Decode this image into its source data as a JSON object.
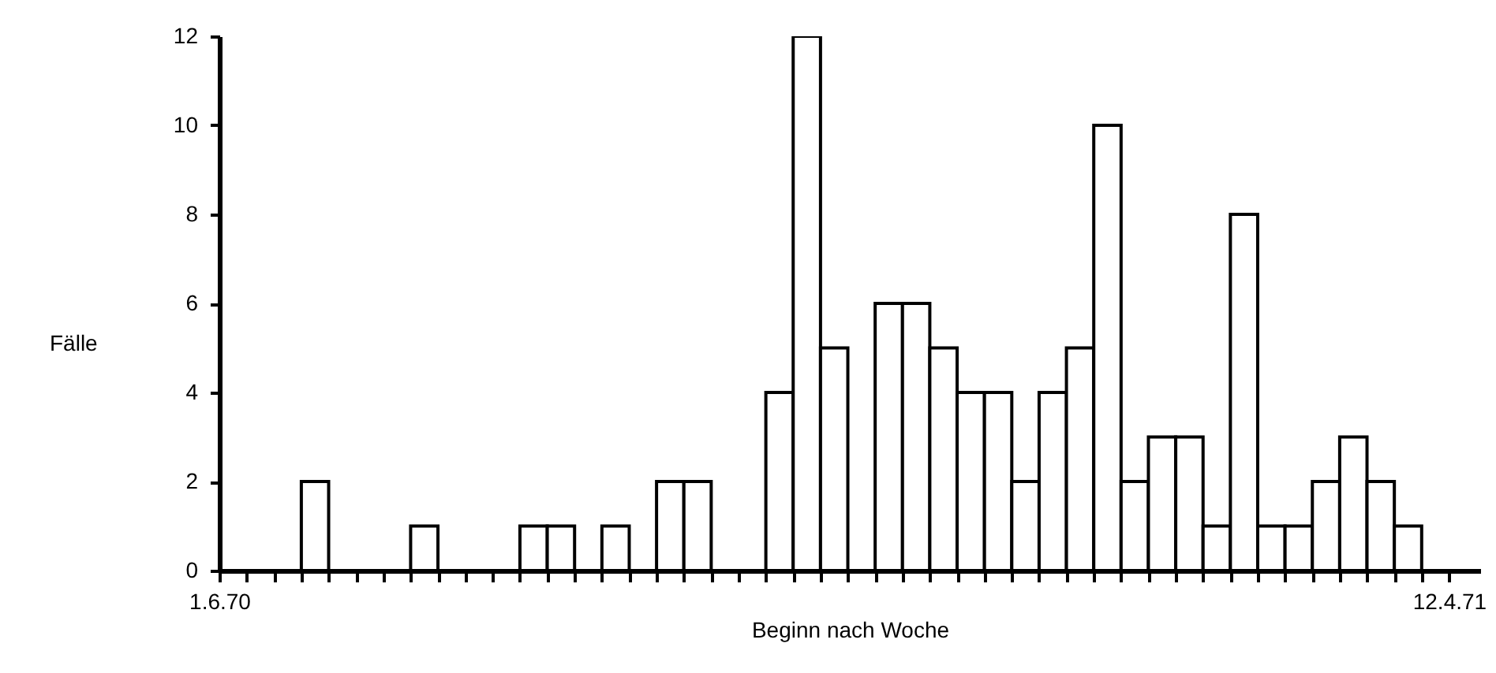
{
  "chart_data": {
    "type": "histogram",
    "xlabel": "Beginn nach Woche",
    "ylabel": "Fälle",
    "bins": [
      "1970-06-01",
      "1970-06-08",
      "1970-06-15",
      "1970-06-22",
      "1970-06-29",
      "1970-07-06",
      "1970-07-13",
      "1970-07-20",
      "1970-07-27",
      "1970-08-03",
      "1970-08-10",
      "1970-08-17",
      "1970-08-24",
      "1970-08-31",
      "1970-09-07",
      "1970-09-14",
      "1970-09-21",
      "1970-09-28",
      "1970-10-05",
      "1970-10-12",
      "1970-10-19",
      "1970-10-26",
      "1970-11-02",
      "1970-11-09",
      "1970-11-16",
      "1970-11-23",
      "1970-11-30",
      "1970-12-07",
      "1970-12-14",
      "1970-12-21",
      "1970-12-28",
      "1971-01-04",
      "1971-01-11",
      "1971-01-18",
      "1971-01-25",
      "1971-02-01",
      "1971-02-08",
      "1971-02-15",
      "1971-02-22",
      "1971-03-01",
      "1971-03-08",
      "1971-03-15",
      "1971-03-22",
      "1971-03-29",
      "1971-04-05",
      "1971-04-12"
    ],
    "values": [
      0,
      0,
      0,
      2,
      0,
      0,
      0,
      1,
      0,
      0,
      0,
      1,
      1,
      0,
      1,
      0,
      2,
      2,
      0,
      0,
      4,
      12,
      5,
      0,
      6,
      6,
      5,
      4,
      4,
      2,
      4,
      5,
      10,
      2,
      3,
      3,
      1,
      8,
      1,
      1,
      2,
      3,
      2,
      1,
      0
    ],
    "xlim": [
      "1970-06-01",
      "1971-04-20"
    ],
    "ylim": [
      0,
      12
    ],
    "xticks": [
      {
        "value": "1970-06-01",
        "label": "1.6.70"
      },
      {
        "value": "1970-06-08",
        "label": null
      },
      {
        "value": "1970-06-15",
        "label": null
      },
      {
        "value": "1970-06-22",
        "label": null
      },
      {
        "value": "1970-06-29",
        "label": null
      },
      {
        "value": "1970-07-06",
        "label": null
      },
      {
        "value": "1970-07-13",
        "label": null
      },
      {
        "value": "1970-07-20",
        "label": null
      },
      {
        "value": "1970-07-27",
        "label": null
      },
      {
        "value": "1970-08-03",
        "label": null
      },
      {
        "value": "1970-08-10",
        "label": null
      },
      {
        "value": "1970-08-17",
        "label": null
      },
      {
        "value": "1970-08-24",
        "label": null
      },
      {
        "value": "1970-08-31",
        "label": null
      },
      {
        "value": "1970-09-07",
        "label": null
      },
      {
        "value": "1970-09-14",
        "label": null
      },
      {
        "value": "1970-09-21",
        "label": null
      },
      {
        "value": "1970-09-28",
        "label": null
      },
      {
        "value": "1970-10-05",
        "label": null
      },
      {
        "value": "1970-10-12",
        "label": null
      },
      {
        "value": "1970-10-19",
        "label": null
      },
      {
        "value": "1970-10-26",
        "label": null
      },
      {
        "value": "1970-11-02",
        "label": null
      },
      {
        "value": "1970-11-09",
        "label": null
      },
      {
        "value": "1970-11-16",
        "label": null
      },
      {
        "value": "1970-11-23",
        "label": null
      },
      {
        "value": "1970-11-30",
        "label": null
      },
      {
        "value": "1970-12-07",
        "label": null
      },
      {
        "value": "1970-12-14",
        "label": null
      },
      {
        "value": "1970-12-21",
        "label": null
      },
      {
        "value": "1970-12-28",
        "label": null
      },
      {
        "value": "1971-01-04",
        "label": null
      },
      {
        "value": "1971-01-11",
        "label": null
      },
      {
        "value": "1971-01-18",
        "label": null
      },
      {
        "value": "1971-01-25",
        "label": null
      },
      {
        "value": "1971-02-01",
        "label": null
      },
      {
        "value": "1971-02-08",
        "label": null
      },
      {
        "value": "1971-02-15",
        "label": null
      },
      {
        "value": "1971-02-22",
        "label": null
      },
      {
        "value": "1971-03-01",
        "label": null
      },
      {
        "value": "1971-03-08",
        "label": null
      },
      {
        "value": "1971-03-15",
        "label": null
      },
      {
        "value": "1971-03-22",
        "label": null
      },
      {
        "value": "1971-03-29",
        "label": null
      },
      {
        "value": "1971-04-05",
        "label": null
      },
      {
        "value": "1971-04-12",
        "label": "12.4.71"
      }
    ],
    "yticks": [
      0,
      2,
      4,
      6,
      8,
      10,
      12
    ]
  }
}
